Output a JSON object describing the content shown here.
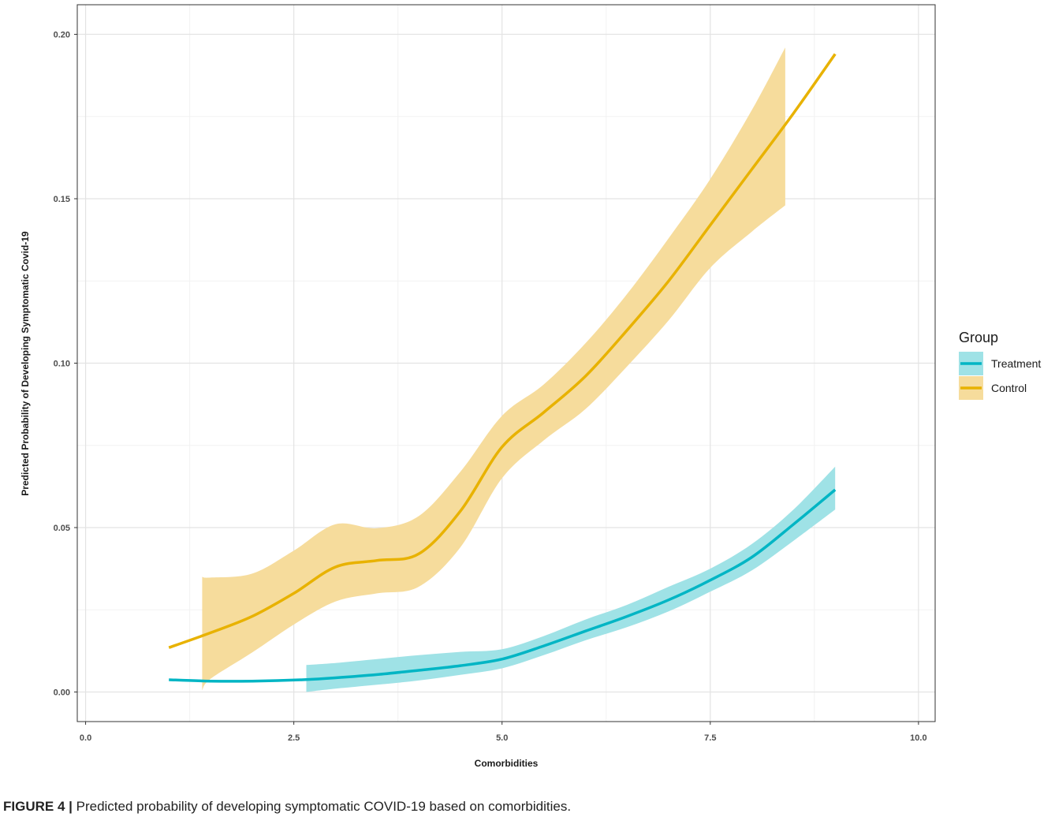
{
  "chart_data": {
    "type": "line",
    "xlabel": "Comorbidities",
    "ylabel": "Predicted Probability of Developing Symptomatic Covid-19",
    "xlim": [
      -0.1,
      10.2
    ],
    "ylim": [
      -0.009,
      0.209
    ],
    "x_ticks": [
      0.0,
      2.5,
      5.0,
      7.5,
      10.0
    ],
    "x_tick_labels": [
      "0.0",
      "2.5",
      "5.0",
      "7.5",
      "10.0"
    ],
    "y_ticks": [
      0.0,
      0.05,
      0.1,
      0.15,
      0.2
    ],
    "y_tick_labels": [
      "0.00",
      "0.05",
      "0.10",
      "0.15",
      "0.20"
    ],
    "x_minor": [
      1.25,
      3.75,
      6.25,
      8.75
    ],
    "y_minor": [
      0.025,
      0.075,
      0.125,
      0.175
    ],
    "grid": true,
    "legend": {
      "title": "Group",
      "position": "right"
    },
    "series": [
      {
        "name": "Treatment",
        "color": "#00B5C4",
        "fill": "#9FE2E6",
        "line": [
          [
            1.0,
            0.0037
          ],
          [
            1.5,
            0.0033
          ],
          [
            2.0,
            0.0033
          ],
          [
            2.6,
            0.0037
          ],
          [
            3.0,
            0.0043
          ],
          [
            3.5,
            0.0053
          ],
          [
            4.0,
            0.0066
          ],
          [
            4.5,
            0.008
          ],
          [
            5.0,
            0.01
          ],
          [
            5.5,
            0.014
          ],
          [
            6.0,
            0.0185
          ],
          [
            6.5,
            0.023
          ],
          [
            7.0,
            0.028
          ],
          [
            7.5,
            0.034
          ],
          [
            8.0,
            0.041
          ],
          [
            8.5,
            0.051
          ],
          [
            9.0,
            0.0615
          ]
        ],
        "ribbon": [
          [
            2.65,
            0.0,
            0.0082
          ],
          [
            3.0,
            0.001,
            0.0088
          ],
          [
            3.5,
            0.0022,
            0.01
          ],
          [
            4.0,
            0.0035,
            0.0112
          ],
          [
            4.5,
            0.0052,
            0.0122
          ],
          [
            5.0,
            0.0072,
            0.013
          ],
          [
            5.5,
            0.0112,
            0.017
          ],
          [
            6.0,
            0.0157,
            0.022
          ],
          [
            6.5,
            0.0197,
            0.0265
          ],
          [
            7.0,
            0.0245,
            0.032
          ],
          [
            7.5,
            0.0305,
            0.0375
          ],
          [
            8.0,
            0.037,
            0.045
          ],
          [
            8.5,
            0.046,
            0.0555
          ],
          [
            9.0,
            0.0555,
            0.0685
          ]
        ]
      },
      {
        "name": "Control",
        "color": "#E8B200",
        "fill": "#F6DC9C",
        "line": [
          [
            1.0,
            0.0135
          ],
          [
            1.5,
            0.018
          ],
          [
            2.0,
            0.023
          ],
          [
            2.5,
            0.03
          ],
          [
            3.0,
            0.038
          ],
          [
            3.5,
            0.04
          ],
          [
            4.0,
            0.042
          ],
          [
            4.5,
            0.055
          ],
          [
            5.0,
            0.0745
          ],
          [
            5.5,
            0.085
          ],
          [
            6.0,
            0.096
          ],
          [
            6.5,
            0.11
          ],
          [
            7.0,
            0.125
          ],
          [
            7.5,
            0.142
          ],
          [
            8.0,
            0.159
          ],
          [
            8.5,
            0.176
          ],
          [
            9.0,
            0.194
          ]
        ],
        "ribbon": [
          [
            1.4,
            0.0005,
            0.035
          ],
          [
            1.5,
            0.004,
            0.0348
          ],
          [
            2.0,
            0.012,
            0.036
          ],
          [
            2.5,
            0.0205,
            0.043
          ],
          [
            3.0,
            0.0275,
            0.051
          ],
          [
            3.5,
            0.03,
            0.0498
          ],
          [
            4.0,
            0.032,
            0.0535
          ],
          [
            4.5,
            0.044,
            0.067
          ],
          [
            5.0,
            0.065,
            0.084
          ],
          [
            5.5,
            0.0765,
            0.0935
          ],
          [
            6.0,
            0.086,
            0.106
          ],
          [
            6.5,
            0.099,
            0.121
          ],
          [
            7.0,
            0.113,
            0.138
          ],
          [
            7.5,
            0.129,
            0.156
          ],
          [
            8.0,
            0.14,
            0.177
          ],
          [
            8.4,
            0.148,
            0.196
          ]
        ]
      }
    ]
  },
  "caption": {
    "prefix": "FIGURE 4 |",
    "text": " Predicted probability of developing symptomatic COVID-19 based on comorbidities."
  }
}
